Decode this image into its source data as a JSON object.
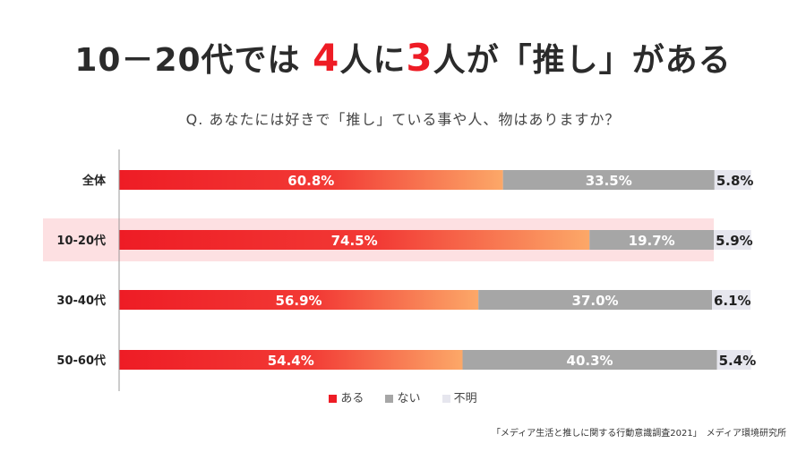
{
  "title": {
    "prefix": "10－20代では",
    "num1": "4",
    "mid1": "人に",
    "num2": "3",
    "mid2": "人",
    "suffix": "が「推し」がある"
  },
  "question": "Q. あなたには好きで「推し」ている事や人、物はありますか？",
  "source": "「メディア生活と推しに関する行動意識調査2021」　メディア環境研究所",
  "colors": {
    "aru_start": "#ee1c25",
    "aru_end": "#fca868",
    "nai": "#a6a6a6",
    "fumei": "#e6e6ee",
    "highlight": "#fde0e2"
  },
  "chart_data": {
    "type": "bar",
    "orientation": "horizontal",
    "stacked": true,
    "categories": [
      "全体",
      "10-20代",
      "30-40代",
      "50-60代"
    ],
    "highlighted_category": "10-20代",
    "series": [
      {
        "name": "ある",
        "values": [
          60.8,
          74.5,
          56.9,
          54.4
        ]
      },
      {
        "name": "ない",
        "values": [
          33.5,
          19.7,
          37.0,
          40.3
        ]
      },
      {
        "name": "不明",
        "values": [
          5.8,
          5.9,
          6.1,
          5.4
        ]
      }
    ],
    "value_labels": [
      [
        "60.8%",
        "74.5%",
        "56.9%",
        "54.4%"
      ],
      [
        "33.5%",
        "19.7%",
        "37.0%",
        "40.3%"
      ],
      [
        "5.8%",
        "5.9%",
        "6.1%",
        "5.4%"
      ]
    ],
    "xlim": [
      0,
      100
    ],
    "legend_position": "bottom"
  }
}
